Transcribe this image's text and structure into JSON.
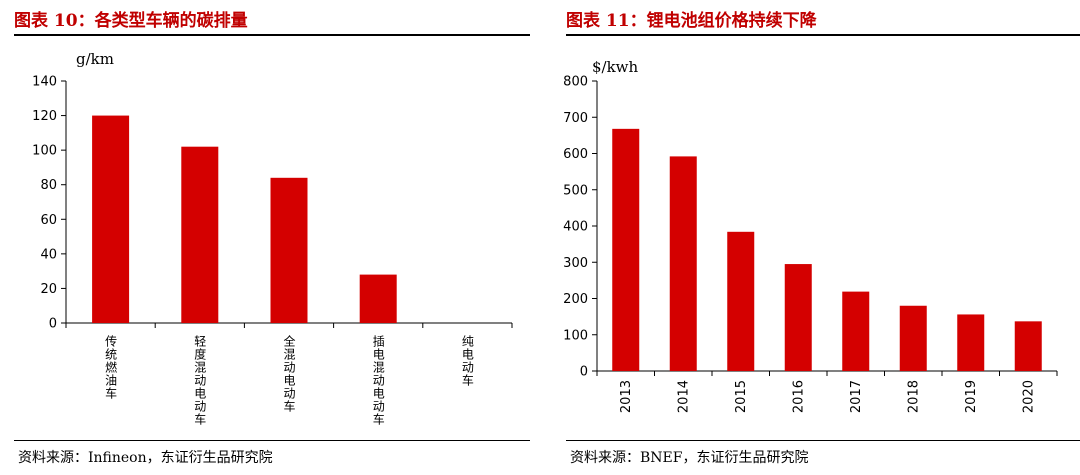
{
  "chart_data": [
    {
      "type": "bar",
      "title": "图表 10：各类型车辆的碳排量",
      "ylabel": "g/km",
      "xlabel": "",
      "categories": [
        "传统燃油车",
        "轻度混动电动车",
        "全混动电动车",
        "插电混动电动车",
        "纯电动车"
      ],
      "values": [
        120,
        102,
        84,
        28,
        0
      ],
      "ylim": [
        0,
        140
      ],
      "yticks": [
        0,
        20,
        40,
        60,
        80,
        100,
        120,
        140
      ],
      "bar_color": "#d40000",
      "grid": false,
      "source": "资料来源：Infineon，东证衍生品研究院"
    },
    {
      "type": "bar",
      "title": "图表 11：锂电池组价格持续下降",
      "ylabel": "$/kwh",
      "xlabel": "",
      "categories": [
        "2013",
        "2014",
        "2015",
        "2016",
        "2017",
        "2018",
        "2019",
        "2020"
      ],
      "values": [
        668,
        592,
        384,
        295,
        219,
        180,
        156,
        137
      ],
      "ylim": [
        0,
        800
      ],
      "yticks": [
        0,
        100,
        200,
        300,
        400,
        500,
        600,
        700,
        800
      ],
      "bar_color": "#d40000",
      "grid": false,
      "source": "资料来源：BNEF，东证衍生品研究院"
    }
  ]
}
